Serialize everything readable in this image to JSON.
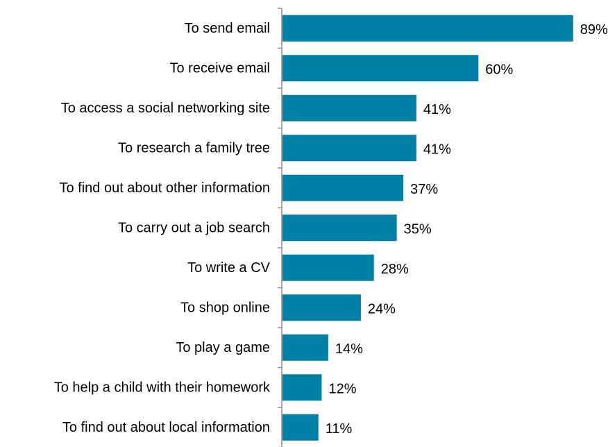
{
  "chart_data": {
    "type": "bar",
    "orientation": "horizontal",
    "title": "",
    "xlabel": "",
    "ylabel": "",
    "categories": [
      "To send email",
      "To receive email",
      "To access a social networking site",
      "To research a family tree",
      "To find out about other information",
      "To carry out a job search",
      "To write a CV",
      "To shop online",
      "To play a game",
      "To help a child with their homework",
      "To find out about local information"
    ],
    "values": [
      89,
      60,
      41,
      41,
      37,
      35,
      28,
      24,
      14,
      12,
      11
    ],
    "value_labels": [
      "89%",
      "60%",
      "41%",
      "41%",
      "37%",
      "35%",
      "28%",
      "24%",
      "14%",
      "12%",
      "11%"
    ],
    "unit": "%",
    "xlim": [
      0,
      100
    ],
    "grid": false,
    "legend": "none",
    "bar_color": "#0080A5",
    "axis_color": "#8C8C8C"
  }
}
